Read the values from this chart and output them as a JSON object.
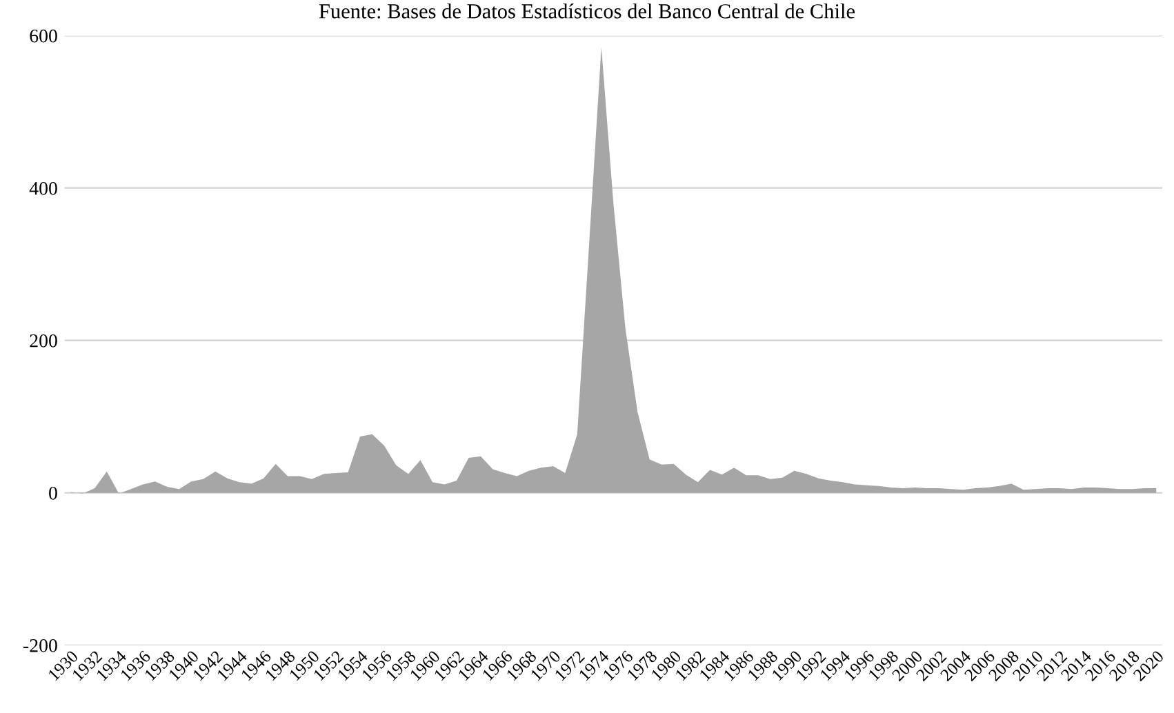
{
  "chart_data": {
    "type": "area",
    "annotations": [
      "Fuente: Bases de Datos Estadísticos del Banco Central de Chile"
    ],
    "categories": [
      "1930",
      null,
      "1932",
      null,
      "1934",
      null,
      "1936",
      null,
      "1938",
      null,
      "1940",
      null,
      "1942",
      null,
      "1944",
      null,
      "1946",
      null,
      "1948",
      null,
      "1950",
      null,
      "1952",
      null,
      "1954",
      null,
      "1956",
      null,
      "1958",
      null,
      "1960",
      null,
      "1962",
      null,
      "1964",
      null,
      "1966",
      null,
      "1968",
      null,
      "1970",
      null,
      "1972",
      null,
      "1974",
      null,
      "1976",
      null,
      "1978",
      null,
      "1980",
      null,
      "1982",
      null,
      "1984",
      null,
      "1986",
      null,
      "1988",
      null,
      "1990",
      null,
      "1992",
      null,
      "1994",
      null,
      "1996",
      null,
      "1998",
      null,
      "2000",
      null,
      "2002",
      null,
      "2004",
      null,
      "2006",
      null,
      "2008",
      null,
      "2010",
      null,
      "2012",
      null,
      "2014",
      null,
      "2016",
      null,
      "2018",
      null,
      "2020"
    ],
    "series": [
      {
        "color": "#a6a6a6",
        "values": [
          1,
          -1,
          6,
          28,
          -1,
          5,
          11,
          15,
          8,
          5,
          15,
          18,
          28,
          19,
          14,
          12,
          19,
          38,
          22,
          22,
          18,
          25,
          26,
          27,
          74,
          77,
          62,
          36,
          25,
          43,
          14,
          11,
          16,
          46,
          48,
          31,
          26,
          22,
          29,
          33,
          35,
          26,
          77,
          330,
          585,
          380,
          215,
          106,
          44,
          37,
          38,
          24,
          14,
          30,
          24,
          33,
          23,
          23,
          18,
          20,
          29,
          25,
          19,
          16,
          14,
          11,
          10,
          9,
          7,
          6,
          7,
          6,
          6,
          5,
          4,
          6,
          7,
          9,
          12,
          4,
          5,
          6,
          6,
          5,
          7,
          7,
          6,
          5,
          5,
          6,
          6
        ]
      }
    ],
    "ylim": [
      -200,
      600
    ],
    "yticks": [
      -200,
      0,
      200,
      400,
      600
    ],
    "grid": "y"
  }
}
